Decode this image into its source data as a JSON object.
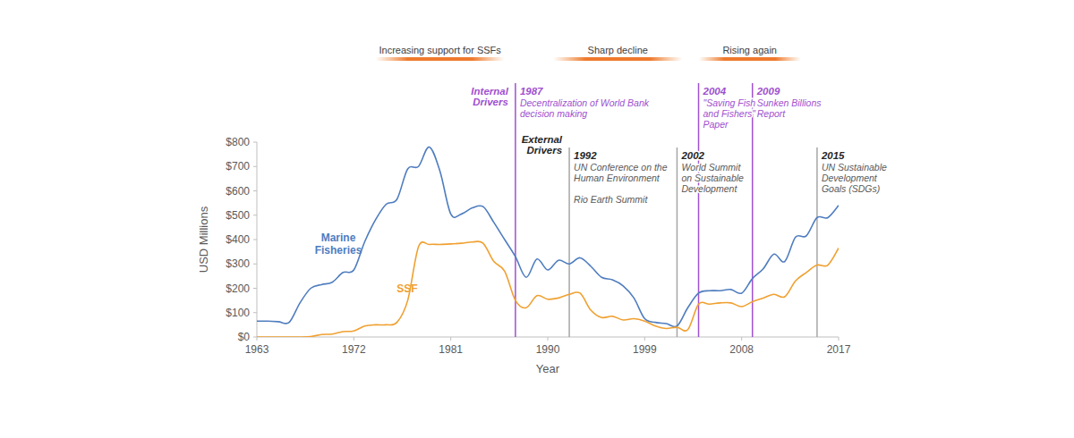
{
  "chart_data": {
    "type": "line",
    "x_label": "Year",
    "y_label": "USD Millions",
    "grid": false,
    "x": [
      1963,
      1964,
      1965,
      1966,
      1967,
      1968,
      1969,
      1970,
      1971,
      1972,
      1973,
      1974,
      1975,
      1976,
      1977,
      1978,
      1979,
      1980,
      1981,
      1982,
      1983,
      1984,
      1985,
      1986,
      1987,
      1988,
      1989,
      1990,
      1991,
      1992,
      1993,
      1994,
      1995,
      1996,
      1997,
      1998,
      1999,
      2000,
      2001,
      2002,
      2003,
      2004,
      2005,
      2006,
      2007,
      2008,
      2009,
      2010,
      2011,
      2012,
      2013,
      2014,
      2015,
      2016,
      2017
    ],
    "xlim": [
      1963,
      2017
    ],
    "xticks": [
      1963,
      1972,
      1981,
      1990,
      1999,
      2008,
      2017
    ],
    "ylim": [
      0,
      800
    ],
    "yticks": [
      {
        "value": 0,
        "label": "$0"
      },
      {
        "value": 100,
        "label": "$100"
      },
      {
        "value": 200,
        "label": "$200"
      },
      {
        "value": 300,
        "label": "$300"
      },
      {
        "value": 400,
        "label": "$400"
      },
      {
        "value": 500,
        "label": "$500"
      },
      {
        "value": 600,
        "label": "$600"
      },
      {
        "value": 700,
        "label": "$700"
      },
      {
        "value": 800,
        "label": "$800"
      }
    ],
    "series": [
      {
        "name": "Marine Fisheries",
        "color": "#4f7dbf",
        "values": [
          65,
          65,
          63,
          60,
          140,
          200,
          215,
          225,
          265,
          275,
          390,
          480,
          545,
          565,
          690,
          700,
          780,
          680,
          505,
          505,
          530,
          535,
          470,
          400,
          330,
          245,
          320,
          275,
          315,
          300,
          325,
          290,
          245,
          235,
          210,
          160,
          75,
          60,
          55,
          45,
          120,
          180,
          190,
          190,
          195,
          180,
          240,
          280,
          340,
          310,
          410,
          415,
          490,
          490,
          540
        ]
      },
      {
        "name": "SSF",
        "color": "#f0a030",
        "values": [
          0,
          0,
          0,
          0,
          0,
          2,
          10,
          12,
          22,
          25,
          45,
          50,
          50,
          60,
          150,
          370,
          380,
          380,
          382,
          385,
          390,
          385,
          310,
          270,
          150,
          120,
          170,
          155,
          160,
          175,
          180,
          110,
          80,
          85,
          70,
          75,
          65,
          45,
          35,
          40,
          30,
          135,
          135,
          140,
          140,
          125,
          145,
          160,
          175,
          165,
          230,
          265,
          295,
          295,
          365
        ]
      }
    ],
    "periods": [
      {
        "label": "Increasing support for SSFs",
        "start": 1974,
        "end": 1986
      },
      {
        "label": "Sharp decline",
        "start": 1990.5,
        "end": 2002.5
      },
      {
        "label": "Rising again",
        "start": 2004,
        "end": 2013.5
      }
    ],
    "drivers": [
      {
        "label": [
          "Internal",
          "Drivers"
        ],
        "color": "#a050d0",
        "events": [
          {
            "year": 1987,
            "notes": [
              [
                "Decentralization of World Bank",
                "decision making"
              ]
            ]
          },
          {
            "year": 2004,
            "notes": [
              [
                "\"Saving Fish",
                "and Fishers\"",
                "Paper"
              ]
            ]
          },
          {
            "year": 2009,
            "notes": [
              [
                "Sunken Billions",
                "Report"
              ]
            ]
          }
        ]
      },
      {
        "label": [
          "External",
          "Drivers"
        ],
        "color": "#a6a6a6",
        "events": [
          {
            "year": 1992,
            "notes": [
              [
                "UN Conference on the",
                "Human Environment"
              ],
              [
                "Rio Earth Summit"
              ]
            ]
          },
          {
            "year": 2002,
            "notes": [
              [
                "World Summit",
                "on Sustainable",
                "Development"
              ]
            ]
          },
          {
            "year": 2015,
            "notes": [
              [
                "UN Sustainable",
                "Development",
                "Goals (SDGs)"
              ]
            ]
          }
        ]
      }
    ]
  }
}
